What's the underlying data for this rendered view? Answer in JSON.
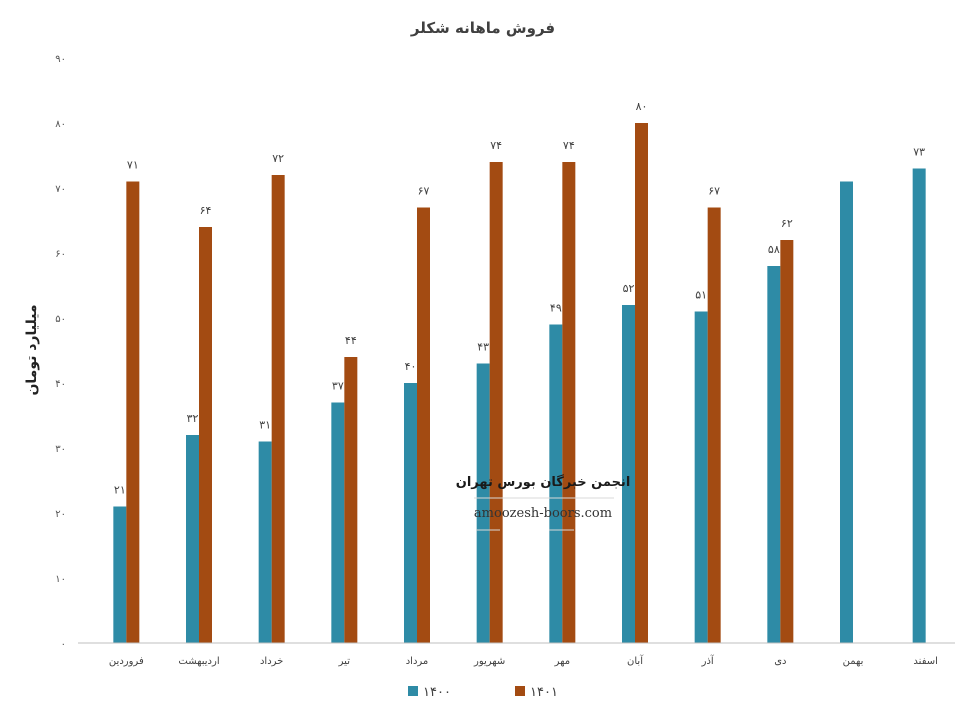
{
  "chart_data": {
    "type": "bar",
    "title": "فروش ماهانه شکلر",
    "ylabel": "میلیارد تومان",
    "xlabel": "",
    "ylim": [
      0,
      90
    ],
    "yticks": [
      0,
      10,
      20,
      30,
      40,
      50,
      60,
      70,
      80,
      90
    ],
    "ytick_labels": [
      "۰",
      "۱۰",
      "۲۰",
      "۳۰",
      "۴۰",
      "۵۰",
      "۶۰",
      "۷۰",
      "۸۰",
      "۹۰"
    ],
    "grid": false,
    "legend_position": "bottom",
    "categories": [
      "فروردین",
      "اردیبهشت",
      "خرداد",
      "تیر",
      "مرداد",
      "شهریور",
      "مهر",
      "آبان",
      "آذر",
      "دی",
      "بهمن",
      "اسفند"
    ],
    "series": [
      {
        "name": "۱۴۰۰",
        "color": "#2e8ba6",
        "values": [
          21,
          32,
          31,
          37,
          40,
          43,
          49,
          52,
          51,
          58,
          71,
          73
        ],
        "labels": [
          "۲۱",
          "۳۲",
          "۳۱",
          "۳۷",
          "۴۰",
          "۴۳",
          "۴۹",
          "۵۲",
          "۵۱",
          "۵۸",
          "۷۱",
          "۷۳"
        ],
        "show_labels": [
          true,
          true,
          true,
          true,
          true,
          true,
          true,
          true,
          true,
          true,
          false,
          true
        ]
      },
      {
        "name": "۱۴۰۱",
        "color": "#a34b12",
        "values": [
          71,
          64,
          72,
          44,
          67,
          74,
          74,
          80,
          67,
          62,
          null,
          null
        ],
        "labels": [
          "۷۱",
          "۶۴",
          "۷۲",
          "۴۴",
          "۶۷",
          "۷۴",
          "۷۴",
          "۸۰",
          "۶۷",
          "۶۲",
          "",
          ""
        ],
        "show_labels": [
          true,
          true,
          true,
          true,
          true,
          true,
          true,
          true,
          true,
          true,
          false,
          false
        ]
      }
    ]
  },
  "watermark": {
    "line1": "انجمن خبرگان بورس تهران",
    "line2": "amoozesh-boors.com"
  }
}
